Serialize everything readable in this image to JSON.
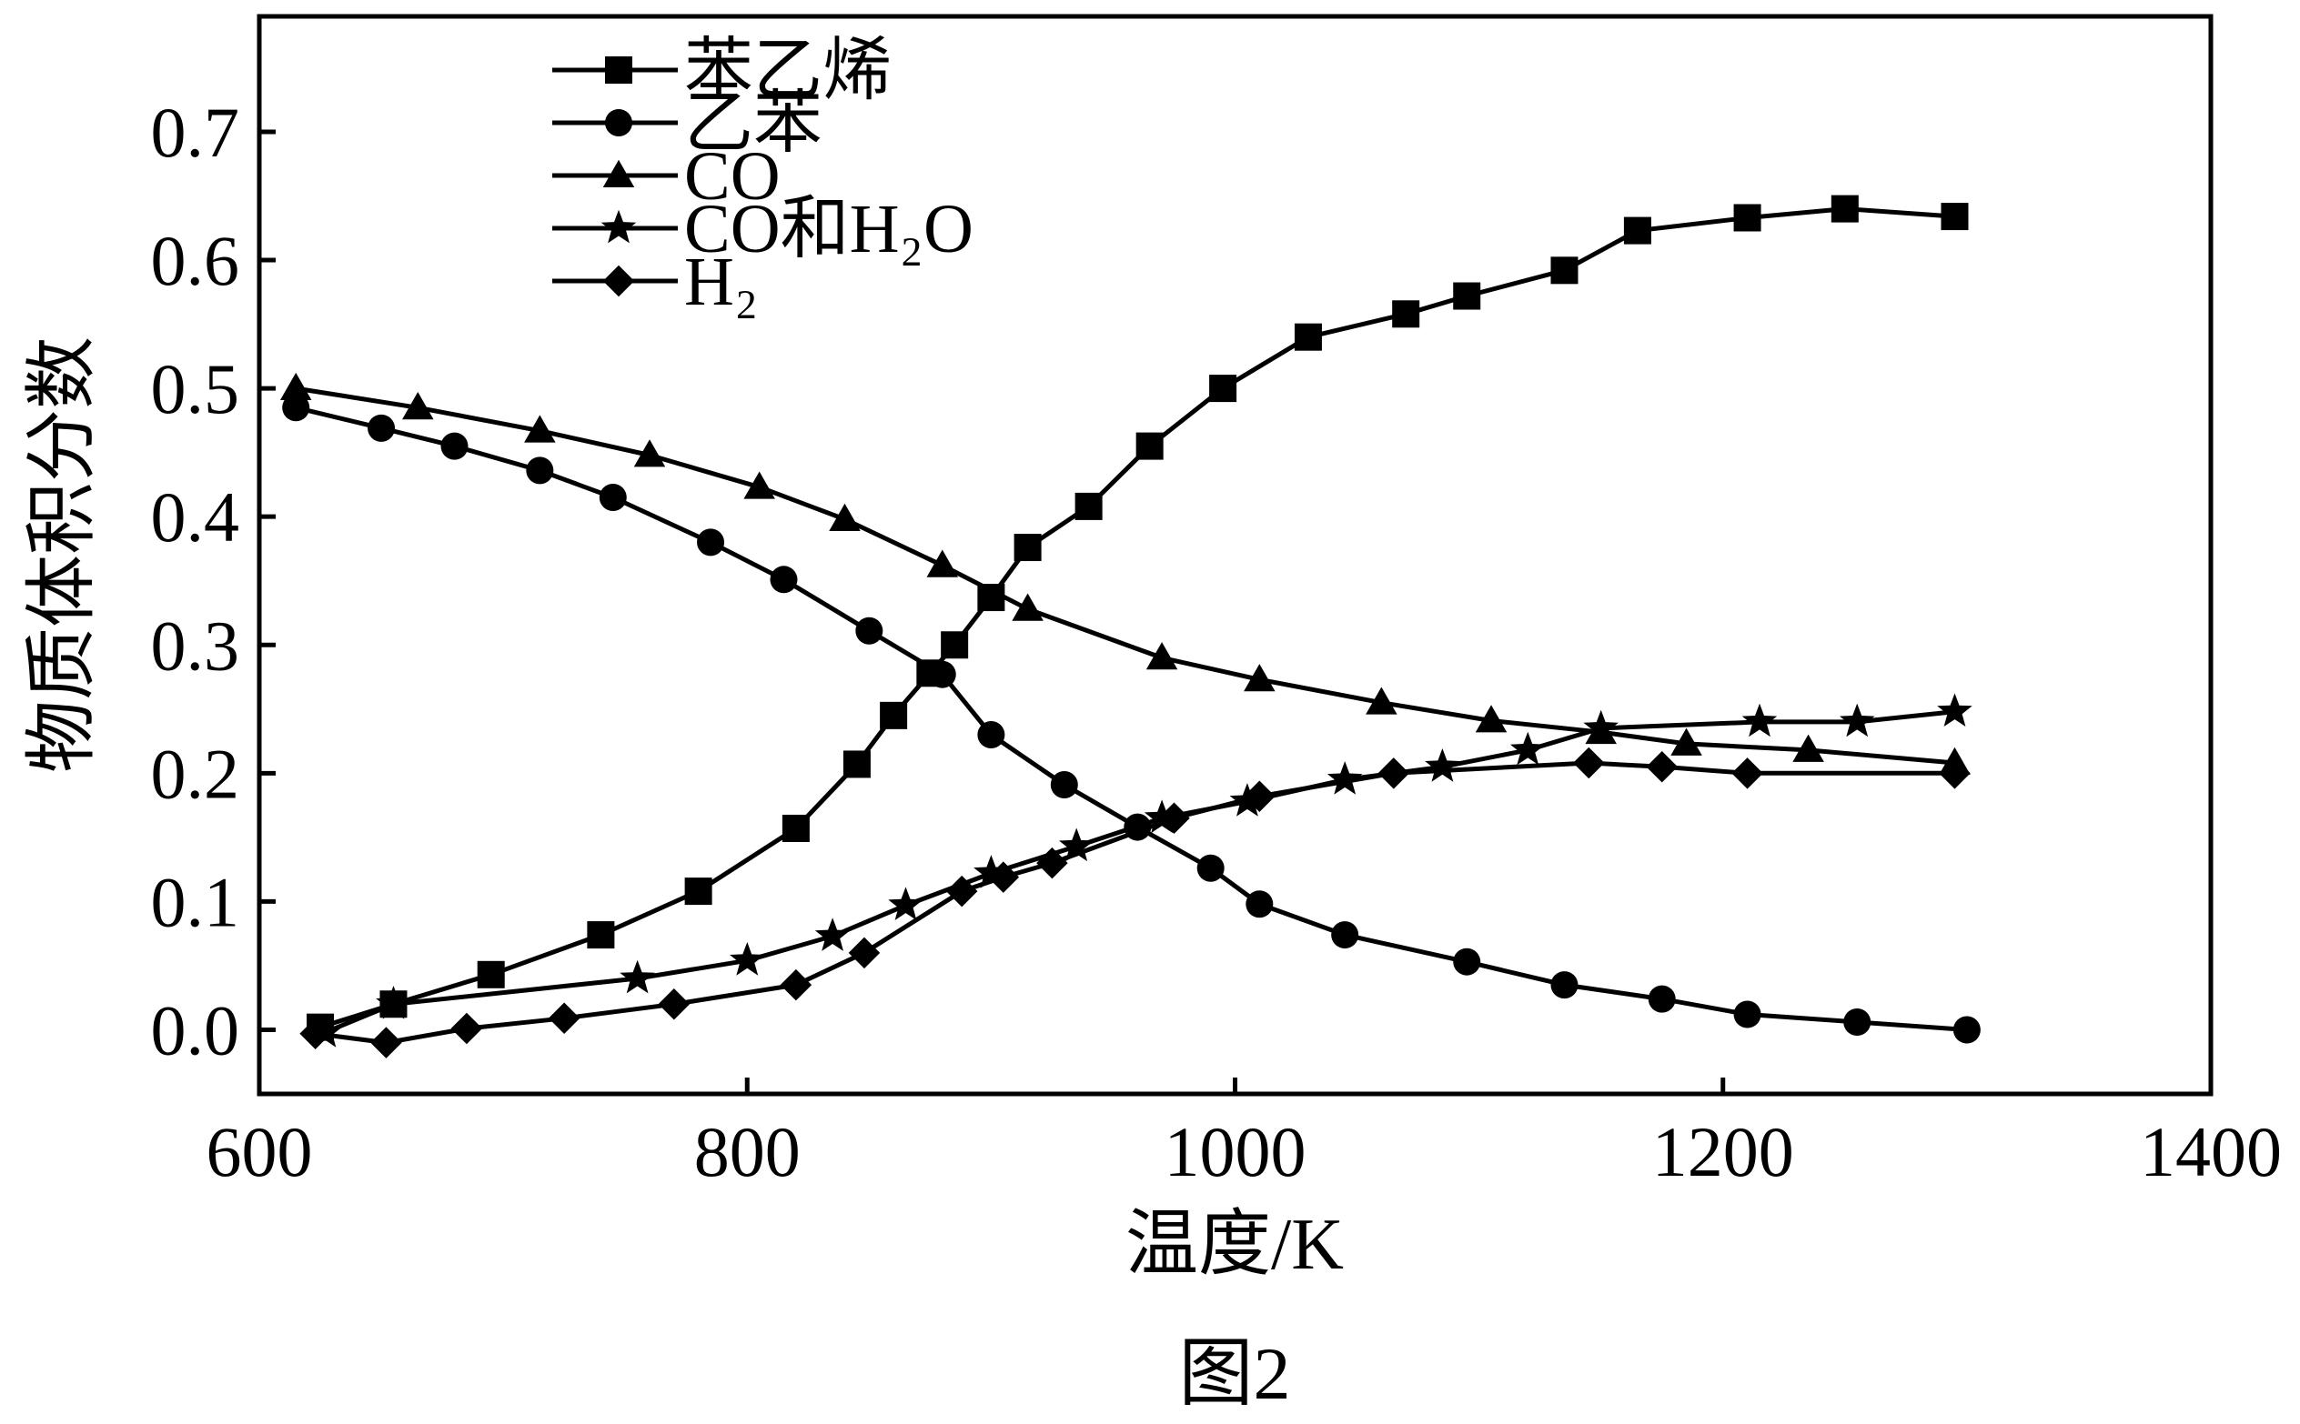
{
  "chart_data": {
    "type": "line",
    "caption": "图2",
    "xlabel": "温度/K",
    "ylabel": "物质体积分数",
    "xlim": [
      600,
      1400
    ],
    "ylim": [
      -0.05,
      0.79
    ],
    "xticks": [
      "600",
      "800",
      "1000",
      "1200",
      "1400"
    ],
    "yticks": [
      "0.0",
      "0.1",
      "0.2",
      "0.3",
      "0.4",
      "0.5",
      "0.6",
      "0.7"
    ],
    "grid": false,
    "legend_position": "top-center",
    "series": [
      {
        "name": "苯乙烯",
        "marker": "square",
        "x": [
          625,
          655,
          695,
          740,
          780,
          820,
          845,
          860,
          875,
          885,
          900,
          915,
          940,
          965,
          995,
          1030,
          1070,
          1095,
          1135,
          1165,
          1210,
          1250,
          1295
        ],
        "y": [
          0.002,
          0.02,
          0.043,
          0.074,
          0.108,
          0.157,
          0.207,
          0.245,
          0.278,
          0.3,
          0.337,
          0.376,
          0.408,
          0.455,
          0.5,
          0.54,
          0.558,
          0.572,
          0.592,
          0.623,
          0.633,
          0.64,
          0.634
        ]
      },
      {
        "name": "乙苯",
        "marker": "circle",
        "x": [
          615,
          650,
          680,
          715,
          745,
          785,
          815,
          850,
          880,
          900,
          930,
          960,
          990,
          1010,
          1045,
          1095,
          1135,
          1175,
          1210,
          1255,
          1300
        ],
        "y": [
          0.485,
          0.469,
          0.455,
          0.436,
          0.415,
          0.38,
          0.351,
          0.311,
          0.277,
          0.23,
          0.191,
          0.158,
          0.126,
          0.098,
          0.074,
          0.053,
          0.035,
          0.024,
          0.012,
          0.006,
          0.0
        ]
      },
      {
        "name": "CO",
        "marker": "triangle",
        "x": [
          615,
          665,
          715,
          760,
          805,
          840,
          880,
          915,
          970,
          1010,
          1060,
          1105,
          1150,
          1185,
          1235,
          1295
        ],
        "y": [
          0.5,
          0.485,
          0.467,
          0.448,
          0.423,
          0.398,
          0.362,
          0.328,
          0.29,
          0.273,
          0.255,
          0.241,
          0.232,
          0.223,
          0.218,
          0.208
        ]
      },
      {
        "name": "CO和H₂O",
        "marker": "star",
        "x": [
          627,
          655,
          755,
          800,
          835,
          865,
          900,
          935,
          970,
          1005,
          1045,
          1085,
          1120,
          1150,
          1215,
          1255,
          1295
        ],
        "y": [
          -0.002,
          0.02,
          0.04,
          0.054,
          0.073,
          0.097,
          0.122,
          0.143,
          0.165,
          0.178,
          0.195,
          0.205,
          0.218,
          0.235,
          0.24,
          0.24,
          0.248
        ]
      },
      {
        "name": "H₂",
        "marker": "diamond",
        "x": [
          623,
          652,
          685,
          725,
          770,
          820,
          848,
          888,
          905,
          925,
          975,
          1010,
          1065,
          1145,
          1175,
          1210,
          1295
        ],
        "y": [
          -0.003,
          -0.01,
          0.001,
          0.009,
          0.02,
          0.035,
          0.06,
          0.108,
          0.119,
          0.13,
          0.165,
          0.182,
          0.2,
          0.208,
          0.205,
          0.2,
          0.2
        ]
      }
    ]
  }
}
